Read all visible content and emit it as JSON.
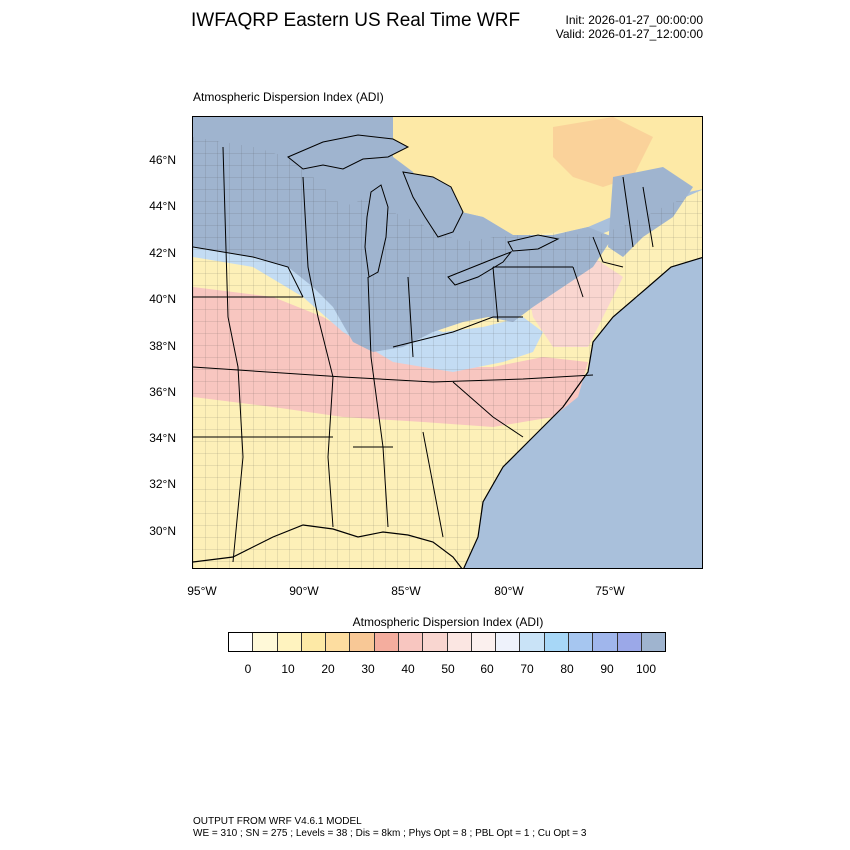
{
  "header": {
    "title": "IWFAQRP Eastern US Real Time WRF",
    "init": "Init: 2026-01-27_00:00:00",
    "valid": "Valid: 2026-01-27_12:00:00"
  },
  "plot": {
    "title": "Atmospheric Dispersion Index   (ADI)",
    "lat_labels": [
      "46°N",
      "44°N",
      "42°N",
      "40°N",
      "38°N",
      "36°N",
      "34°N",
      "32°N",
      "30°N"
    ],
    "lon_labels": [
      "95°W",
      "90°W",
      "85°W",
      "80°W",
      "75°W"
    ]
  },
  "colorbar": {
    "title": "Atmospheric Dispersion Index  (ADI)",
    "colors": [
      "#ffffff",
      "#fff9d8",
      "#fff3bf",
      "#fde9a6",
      "#fddda0",
      "#f8c896",
      "#f4ad9e",
      "#f8c6c0",
      "#f9d6d0",
      "#fbe6e2",
      "#fbf0ee",
      "#eef2fb",
      "#c9e3f7",
      "#a7d7f7",
      "#a6c6f0",
      "#a0b6ec",
      "#9ba8e8",
      "#9fb4cf"
    ],
    "ticks": [
      "0",
      "10",
      "20",
      "30",
      "40",
      "50",
      "60",
      "70",
      "80",
      "90",
      "100"
    ]
  },
  "footer": {
    "line1": "OUTPUT FROM WRF V4.6.1 MODEL",
    "line2": "WE = 310 ; SN = 275 ; Levels = 38 ; Dis = 8km ; Phys Opt = 8 ; PBL Opt = 1 ; Cu Opt = 3"
  },
  "colors": {
    "ocean": "#a9c0db",
    "high_adi": "#9fb4cf",
    "low_adi_yellow": "#fdf0b8",
    "mid_adi_pink": "#f8c6c0",
    "light_blue": "#c3dcf3",
    "canada_yellow": "#fde9a6"
  }
}
